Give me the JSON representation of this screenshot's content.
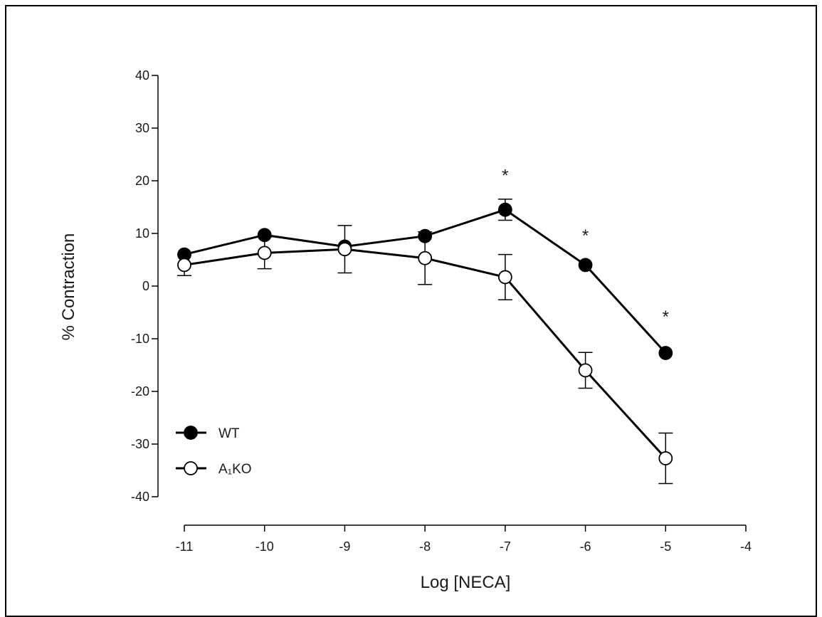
{
  "chart_data": {
    "type": "line",
    "xlabel": "Log [NECA]",
    "ylabel": "% Contraction",
    "xlim": [
      -11,
      -4
    ],
    "ylim": [
      -40,
      40
    ],
    "x_ticks": [
      "-11",
      "-10",
      "-9",
      "-8",
      "-7",
      "-6",
      "-5",
      "-4"
    ],
    "y_ticks": [
      "40",
      "30",
      "20",
      "10",
      "0",
      "-10",
      "-20",
      "-30",
      "-40"
    ],
    "grid": false,
    "legend_position": "bottom-left",
    "series": [
      {
        "name": "WT",
        "marker": "filled-circle",
        "color": "#000000",
        "x": [
          -11,
          -10,
          -9,
          -8,
          -7,
          -6,
          -5
        ],
        "y": [
          6,
          9.7,
          7.5,
          9.5,
          14.5,
          4,
          -12.7
        ],
        "err": [
          0,
          0,
          0,
          0,
          2,
          0,
          0
        ]
      },
      {
        "name": "A₁KO",
        "marker": "open-circle",
        "color": "#000000",
        "x": [
          -11,
          -10,
          -9,
          -8,
          -7,
          -6,
          -5
        ],
        "y": [
          4,
          6.3,
          7,
          5.3,
          1.7,
          -16,
          -32.7
        ],
        "err": [
          2,
          3,
          4.5,
          5,
          4.3,
          3.4,
          4.8
        ]
      }
    ],
    "annotations": [
      {
        "text": "*",
        "x": -7,
        "y": 21
      },
      {
        "text": "*",
        "x": -6,
        "y": 9.6
      },
      {
        "text": "*",
        "x": -5,
        "y": -5.8
      }
    ]
  }
}
